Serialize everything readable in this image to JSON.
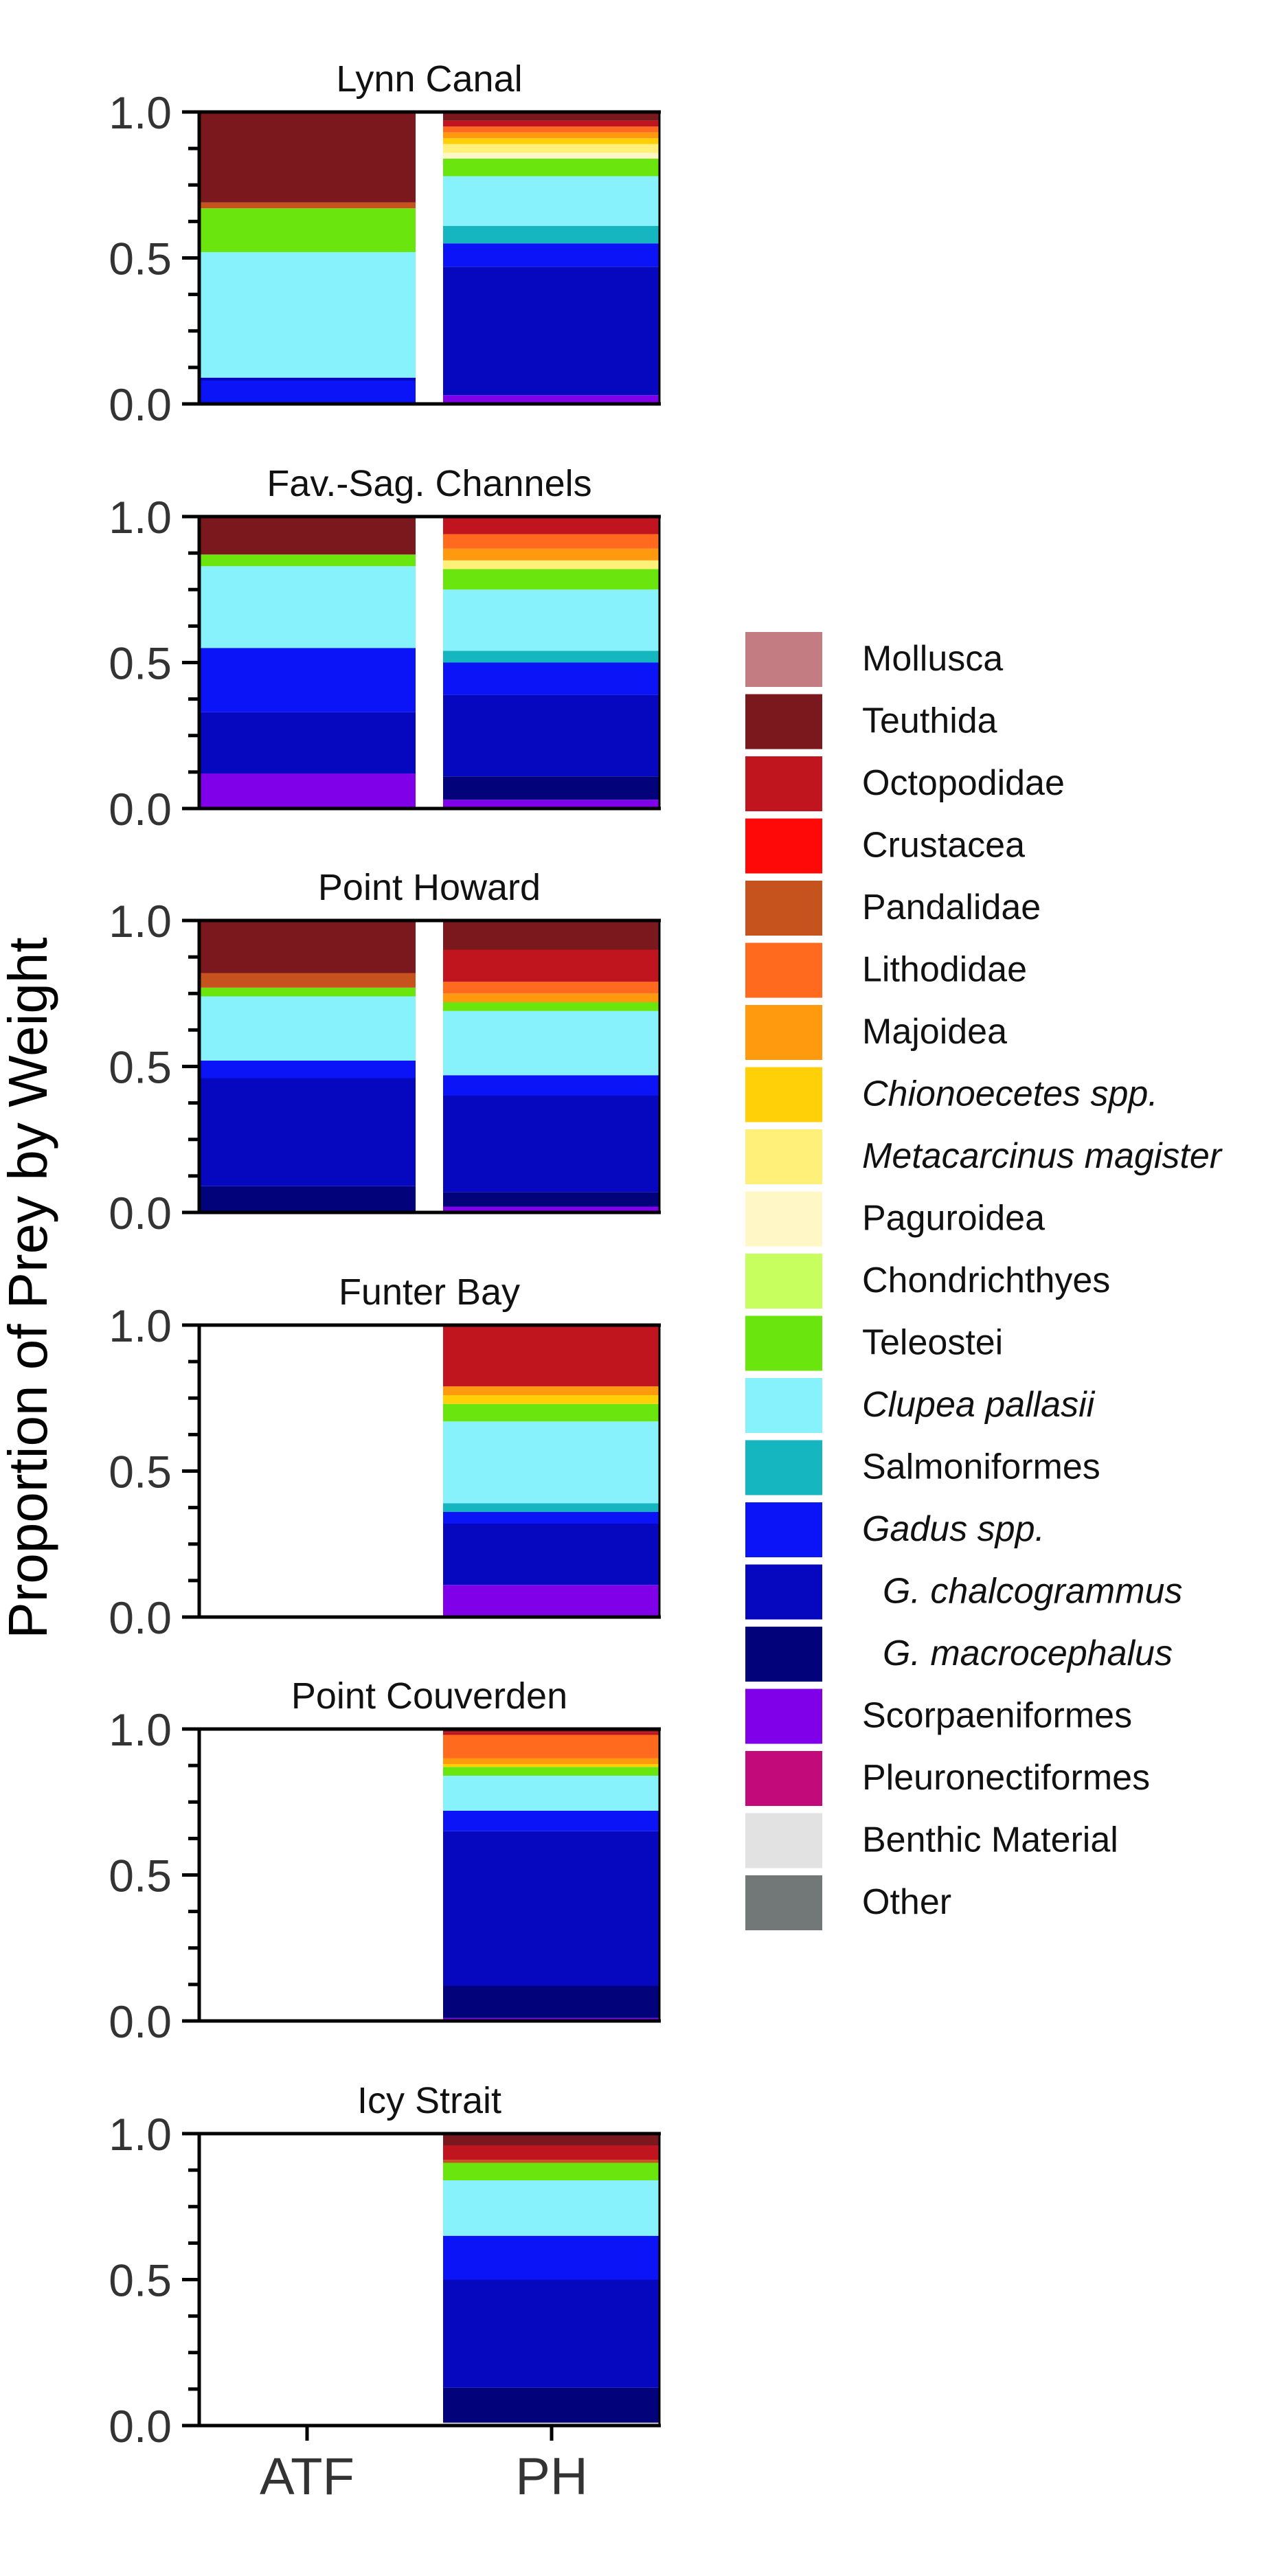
{
  "chart_data": {
    "type": "bar",
    "stacked": true,
    "ylabel": "Proportion of Prey by Weight",
    "xlabel": "",
    "categories": [
      "ATF",
      "PH"
    ],
    "ylim": [
      0,
      1
    ],
    "yticks": [
      "0.0",
      "0.5",
      "1.0"
    ],
    "legend_position": "right",
    "categories_order": [
      "Mollusca",
      "Teuthida",
      "Octopodidae",
      "Crustacea",
      "Pandalidae",
      "Lithodidae",
      "Majoidea",
      "Chionoecetes spp.",
      "Metacarcinus magister",
      "Paguroidea",
      "Chondrichthyes",
      "Teleostei",
      "Clupea pallasii",
      "Salmoniformes",
      "Gadus spp.",
      "G. chalcogrammus",
      "G. macrocephalus",
      "Scorpaeniformes",
      "Pleuronectiformes",
      "Benthic Material",
      "Other"
    ],
    "legend": [
      {
        "label": "Mollusca",
        "color": "#c27c82",
        "italic": false,
        "indent": false
      },
      {
        "label": "Teuthida",
        "color": "#7a181e",
        "italic": false,
        "indent": false
      },
      {
        "label": "Octopodidae",
        "color": "#c0141e",
        "italic": false,
        "indent": false
      },
      {
        "label": "Crustacea",
        "color": "#ff0808",
        "italic": false,
        "indent": false
      },
      {
        "label": "Pandalidae",
        "color": "#c6521e",
        "italic": false,
        "indent": false
      },
      {
        "label": "Lithodidae",
        "color": "#ff6a1e",
        "italic": false,
        "indent": false
      },
      {
        "label": "Majoidea",
        "color": "#ff9a0e",
        "italic": false,
        "indent": false
      },
      {
        "label": "Chionoecetes spp.",
        "color": "#ffd008",
        "italic": true,
        "indent": false
      },
      {
        "label": "Metacarcinus magister",
        "color": "#fff07a",
        "italic": true,
        "indent": false
      },
      {
        "label": "Paguroidea",
        "color": "#fff8c6",
        "italic": false,
        "indent": false
      },
      {
        "label": "Chondrichthyes",
        "color": "#c6ff5e",
        "italic": false,
        "indent": false
      },
      {
        "label": "Teleostei",
        "color": "#6ae60e",
        "italic": false,
        "indent": false
      },
      {
        "label": "Clupea pallasii",
        "color": "#88f2fc",
        "italic": true,
        "indent": false
      },
      {
        "label": "Salmoniformes",
        "color": "#16b6c0",
        "italic": false,
        "indent": false
      },
      {
        "label": "Gadus spp.",
        "color": "#0a14f6",
        "italic": true,
        "indent": false
      },
      {
        "label": "G. chalcogrammus",
        "color": "#0608c0",
        "italic": true,
        "indent": true
      },
      {
        "label": "G. macrocephalus",
        "color": "#02027a",
        "italic": true,
        "indent": true
      },
      {
        "label": "Scorpaeniformes",
        "color": "#8000ea",
        "italic": false,
        "indent": false
      },
      {
        "label": "Pleuronectiformes",
        "color": "#c20a7a",
        "italic": false,
        "indent": false
      },
      {
        "label": "Benthic Material",
        "color": "#e2e2e2",
        "italic": false,
        "indent": false
      },
      {
        "label": "Other",
        "color": "#727878",
        "italic": false,
        "indent": false
      }
    ],
    "panels": [
      {
        "title": "Lynn Canal",
        "bars": [
          {
            "name": "ATF",
            "segments": [
              {
                "category": "Gadus spp.",
                "value": 0.08
              },
              {
                "category": "G. chalcogrammus",
                "value": 0.01
              },
              {
                "category": "Clupea pallasii",
                "value": 0.43
              },
              {
                "category": "Teleostei",
                "value": 0.15
              },
              {
                "category": "Pandalidae",
                "value": 0.02
              },
              {
                "category": "Teuthida",
                "value": 0.31
              }
            ]
          },
          {
            "name": "PH",
            "segments": [
              {
                "category": "Scorpaeniformes",
                "value": 0.03
              },
              {
                "category": "G. chalcogrammus",
                "value": 0.44
              },
              {
                "category": "Gadus spp.",
                "value": 0.08
              },
              {
                "category": "Salmoniformes",
                "value": 0.06
              },
              {
                "category": "Clupea pallasii",
                "value": 0.17
              },
              {
                "category": "Teleostei",
                "value": 0.06
              },
              {
                "category": "Paguroidea",
                "value": 0.02
              },
              {
                "category": "Metacarcinus magister",
                "value": 0.03
              },
              {
                "category": "Chionoecetes spp.",
                "value": 0.02
              },
              {
                "category": "Majoidea",
                "value": 0.02
              },
              {
                "category": "Lithodidae",
                "value": 0.02
              },
              {
                "category": "Octopodidae",
                "value": 0.02
              },
              {
                "category": "Teuthida",
                "value": 0.03
              }
            ]
          }
        ]
      },
      {
        "title": "Fav.-Sag. Channels",
        "bars": [
          {
            "name": "ATF",
            "segments": [
              {
                "category": "Scorpaeniformes",
                "value": 0.12
              },
              {
                "category": "G. chalcogrammus",
                "value": 0.21
              },
              {
                "category": "Gadus spp.",
                "value": 0.22
              },
              {
                "category": "Clupea pallasii",
                "value": 0.28
              },
              {
                "category": "Teleostei",
                "value": 0.04
              },
              {
                "category": "Teuthida",
                "value": 0.13
              }
            ]
          },
          {
            "name": "PH",
            "segments": [
              {
                "category": "Scorpaeniformes",
                "value": 0.03
              },
              {
                "category": "G. macrocephalus",
                "value": 0.08
              },
              {
                "category": "G. chalcogrammus",
                "value": 0.28
              },
              {
                "category": "Gadus spp.",
                "value": 0.11
              },
              {
                "category": "Salmoniformes",
                "value": 0.04
              },
              {
                "category": "Clupea pallasii",
                "value": 0.21
              },
              {
                "category": "Teleostei",
                "value": 0.07
              },
              {
                "category": "Metacarcinus magister",
                "value": 0.03
              },
              {
                "category": "Majoidea",
                "value": 0.04
              },
              {
                "category": "Lithodidae",
                "value": 0.05
              },
              {
                "category": "Octopodidae",
                "value": 0.06
              }
            ]
          }
        ]
      },
      {
        "title": "Point Howard",
        "bars": [
          {
            "name": "ATF",
            "segments": [
              {
                "category": "G. macrocephalus",
                "value": 0.09
              },
              {
                "category": "G. chalcogrammus",
                "value": 0.37
              },
              {
                "category": "Gadus spp.",
                "value": 0.06
              },
              {
                "category": "Clupea pallasii",
                "value": 0.22
              },
              {
                "category": "Teleostei",
                "value": 0.03
              },
              {
                "category": "Pandalidae",
                "value": 0.05
              },
              {
                "category": "Teuthida",
                "value": 0.18
              }
            ]
          },
          {
            "name": "PH",
            "segments": [
              {
                "category": "Scorpaeniformes",
                "value": 0.02
              },
              {
                "category": "G. macrocephalus",
                "value": 0.05
              },
              {
                "category": "G. chalcogrammus",
                "value": 0.33
              },
              {
                "category": "Gadus spp.",
                "value": 0.07
              },
              {
                "category": "Clupea pallasii",
                "value": 0.22
              },
              {
                "category": "Teleostei",
                "value": 0.03
              },
              {
                "category": "Majoidea",
                "value": 0.03
              },
              {
                "category": "Lithodidae",
                "value": 0.04
              },
              {
                "category": "Octopodidae",
                "value": 0.11
              },
              {
                "category": "Teuthida",
                "value": 0.1
              }
            ]
          }
        ]
      },
      {
        "title": "Funter Bay",
        "bars": [
          {
            "name": "ATF",
            "segments": []
          },
          {
            "name": "PH",
            "segments": [
              {
                "category": "Scorpaeniformes",
                "value": 0.11
              },
              {
                "category": "G. chalcogrammus",
                "value": 0.21
              },
              {
                "category": "Gadus spp.",
                "value": 0.04
              },
              {
                "category": "Salmoniformes",
                "value": 0.03
              },
              {
                "category": "Clupea pallasii",
                "value": 0.28
              },
              {
                "category": "Teleostei",
                "value": 0.06
              },
              {
                "category": "Chionoecetes spp.",
                "value": 0.03
              },
              {
                "category": "Majoidea",
                "value": 0.03
              },
              {
                "category": "Octopodidae",
                "value": 0.21
              }
            ]
          }
        ]
      },
      {
        "title": "Point Couverden",
        "bars": [
          {
            "name": "ATF",
            "segments": []
          },
          {
            "name": "PH",
            "segments": [
              {
                "category": "Scorpaeniformes",
                "value": 0.01
              },
              {
                "category": "G. macrocephalus",
                "value": 0.11
              },
              {
                "category": "G. chalcogrammus",
                "value": 0.53
              },
              {
                "category": "Gadus spp.",
                "value": 0.07
              },
              {
                "category": "Clupea pallasii",
                "value": 0.12
              },
              {
                "category": "Teleostei",
                "value": 0.03
              },
              {
                "category": "Chionoecetes spp.",
                "value": 0.01
              },
              {
                "category": "Majoidea",
                "value": 0.02
              },
              {
                "category": "Lithodidae",
                "value": 0.08
              },
              {
                "category": "Octopodidae",
                "value": 0.01
              },
              {
                "category": "Teuthida",
                "value": 0.01
              }
            ]
          }
        ]
      },
      {
        "title": "Icy Strait",
        "bars": [
          {
            "name": "ATF",
            "segments": []
          },
          {
            "name": "PH",
            "segments": [
              {
                "category": "Benthic Material",
                "value": 0.01
              },
              {
                "category": "G. macrocephalus",
                "value": 0.12
              },
              {
                "category": "G. chalcogrammus",
                "value": 0.37
              },
              {
                "category": "Gadus spp.",
                "value": 0.15
              },
              {
                "category": "Clupea pallasii",
                "value": 0.19
              },
              {
                "category": "Teleostei",
                "value": 0.06
              },
              {
                "category": "Pandalidae",
                "value": 0.01
              },
              {
                "category": "Octopodidae",
                "value": 0.05
              },
              {
                "category": "Teuthida",
                "value": 0.04
              }
            ]
          }
        ]
      }
    ]
  }
}
